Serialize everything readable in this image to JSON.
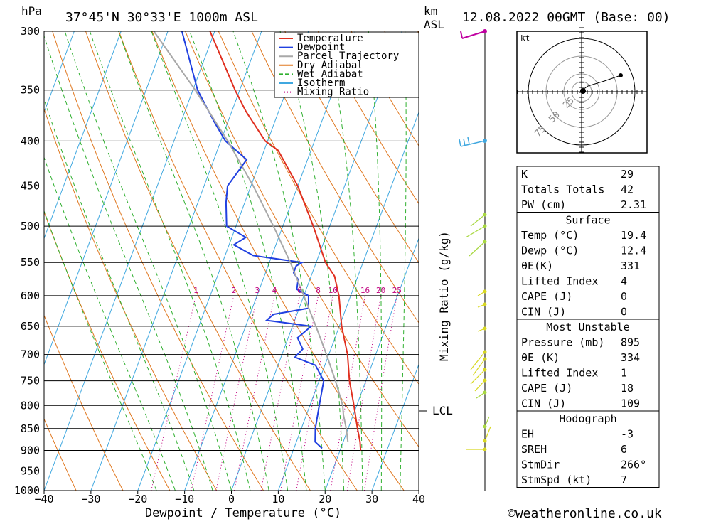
{
  "header": {
    "location": "37°45'N  30°33'E  1000m  ASL",
    "datetime": "12.08.2022  00GMT  (Base: 00)",
    "left_unit": "hPa",
    "right_unit_1": "km",
    "right_unit_2": "ASL",
    "lcl_label": "LCL",
    "mixing_ratio_axis": "Mixing Ratio (g/kg)",
    "hodo_unit": "kt",
    "watermark": "©weatheronline.co.uk"
  },
  "chart_data": {
    "type": "line",
    "title": "37°45'N 30°33'E 1000m ASL — 12.08.2022 00GMT (Base: 00)",
    "xlabel": "Dewpoint / Temperature (°C)",
    "ylabel": "hPa",
    "xlim": [
      -40,
      40
    ],
    "ylim": [
      1000,
      300
    ],
    "y_scale": "log",
    "grid": true,
    "legend_position": "top-right",
    "x_ticks": [
      "−40",
      "−30",
      "−20",
      "−10",
      "0",
      "10",
      "20",
      "30",
      "40"
    ],
    "pressure_ticks": [
      300,
      350,
      400,
      450,
      500,
      550,
      600,
      650,
      700,
      750,
      800,
      850,
      900,
      950,
      1000
    ],
    "mixing_ratio_labels": [
      "1",
      "2",
      "3",
      "4",
      "6",
      "8",
      "10",
      "16",
      "20",
      "25"
    ],
    "legend": [
      "Temperature",
      "Dewpoint",
      "Parcel Trajectory",
      "Dry Adiabat",
      "Wet Adiabat",
      "Isotherm",
      "Mixing Ratio"
    ],
    "series": [
      {
        "name": "Temperature",
        "color": "#e03020",
        "points": [
          [
            24.4,
            900
          ],
          [
            23.6,
            880
          ],
          [
            22,
            850
          ],
          [
            19.4,
            800
          ],
          [
            16.5,
            750
          ],
          [
            14,
            700
          ],
          [
            10.5,
            650
          ],
          [
            7.5,
            600
          ],
          [
            5,
            570
          ],
          [
            2,
            550
          ],
          [
            -3.5,
            500
          ],
          [
            -10,
            450
          ],
          [
            -17,
            410
          ],
          [
            -20.5,
            400
          ],
          [
            -27,
            370
          ],
          [
            -31,
            350
          ],
          [
            -41,
            300
          ]
        ]
      },
      {
        "name": "Dewpoint",
        "color": "#2040e0",
        "points": [
          [
            16,
            895
          ],
          [
            14,
            880
          ],
          [
            13,
            850
          ],
          [
            12,
            800
          ],
          [
            11,
            750
          ],
          [
            8,
            720
          ],
          [
            3,
            705
          ],
          [
            4,
            690
          ],
          [
            2,
            670
          ],
          [
            4,
            650
          ],
          [
            -6,
            640
          ],
          [
            -5,
            630
          ],
          [
            2,
            620
          ],
          [
            1,
            600
          ],
          [
            -2,
            590
          ],
          [
            -2.5,
            575
          ],
          [
            -4,
            565
          ],
          [
            -4,
            555
          ],
          [
            -3,
            550
          ],
          [
            -14,
            540
          ],
          [
            -19,
            525
          ],
          [
            -17,
            515
          ],
          [
            -22,
            500
          ],
          [
            -24,
            470
          ],
          [
            -25,
            450
          ],
          [
            -23,
            420
          ],
          [
            -29,
            400
          ],
          [
            -33,
            380
          ],
          [
            -39,
            350
          ],
          [
            -47,
            300
          ]
        ]
      },
      {
        "name": "Parcel Trajectory",
        "color": "#a8a8a8",
        "points": [
          [
            21,
            880
          ],
          [
            19.6,
            850
          ],
          [
            17.9,
            820
          ],
          [
            17,
            800
          ],
          [
            13.5,
            750
          ],
          [
            9.5,
            700
          ],
          [
            5,
            650
          ],
          [
            0,
            600
          ],
          [
            -5.5,
            550
          ],
          [
            -12,
            500
          ],
          [
            -19.5,
            450
          ],
          [
            -28.5,
            400
          ],
          [
            -39.5,
            350
          ],
          [
            -53,
            300
          ]
        ]
      }
    ]
  },
  "wind_axis": {
    "color_upper": "#c000a0",
    "color_mid": "#40a8e0",
    "color_low": "#d8d820"
  },
  "indices": {
    "rows": [
      {
        "label": "K",
        "value": "29"
      },
      {
        "label": "Totals Totals",
        "value": "42"
      },
      {
        "label": "PW (cm)",
        "value": "2.31"
      }
    ]
  },
  "surface": {
    "header": "Surface",
    "rows": [
      {
        "label": "Temp (°C)",
        "value": "19.4"
      },
      {
        "label": "Dewp (°C)",
        "value": "12.4"
      },
      {
        "label": "θE(K)",
        "value": "331"
      },
      {
        "label": "Lifted Index",
        "value": "4"
      },
      {
        "label": "CAPE (J)",
        "value": "0"
      },
      {
        "label": "CIN (J)",
        "value": "0"
      }
    ]
  },
  "most_unstable": {
    "header": "Most Unstable",
    "rows": [
      {
        "label": "Pressure (mb)",
        "value": "895"
      },
      {
        "label": "θE (K)",
        "value": "334"
      },
      {
        "label": "Lifted Index",
        "value": "1"
      },
      {
        "label": "CAPE (J)",
        "value": "18"
      },
      {
        "label": "CIN (J)",
        "value": "109"
      }
    ]
  },
  "hodograph_table": {
    "header": "Hodograph",
    "rows": [
      {
        "label": "EH",
        "value": "-3"
      },
      {
        "label": "SREH",
        "value": "6"
      },
      {
        "label": "StmDir",
        "value": "266°"
      },
      {
        "label": "StmSpd (kt)",
        "value": "7"
      }
    ]
  },
  "hodograph": {
    "ring_labels": [
      "25",
      "50",
      "75"
    ]
  }
}
